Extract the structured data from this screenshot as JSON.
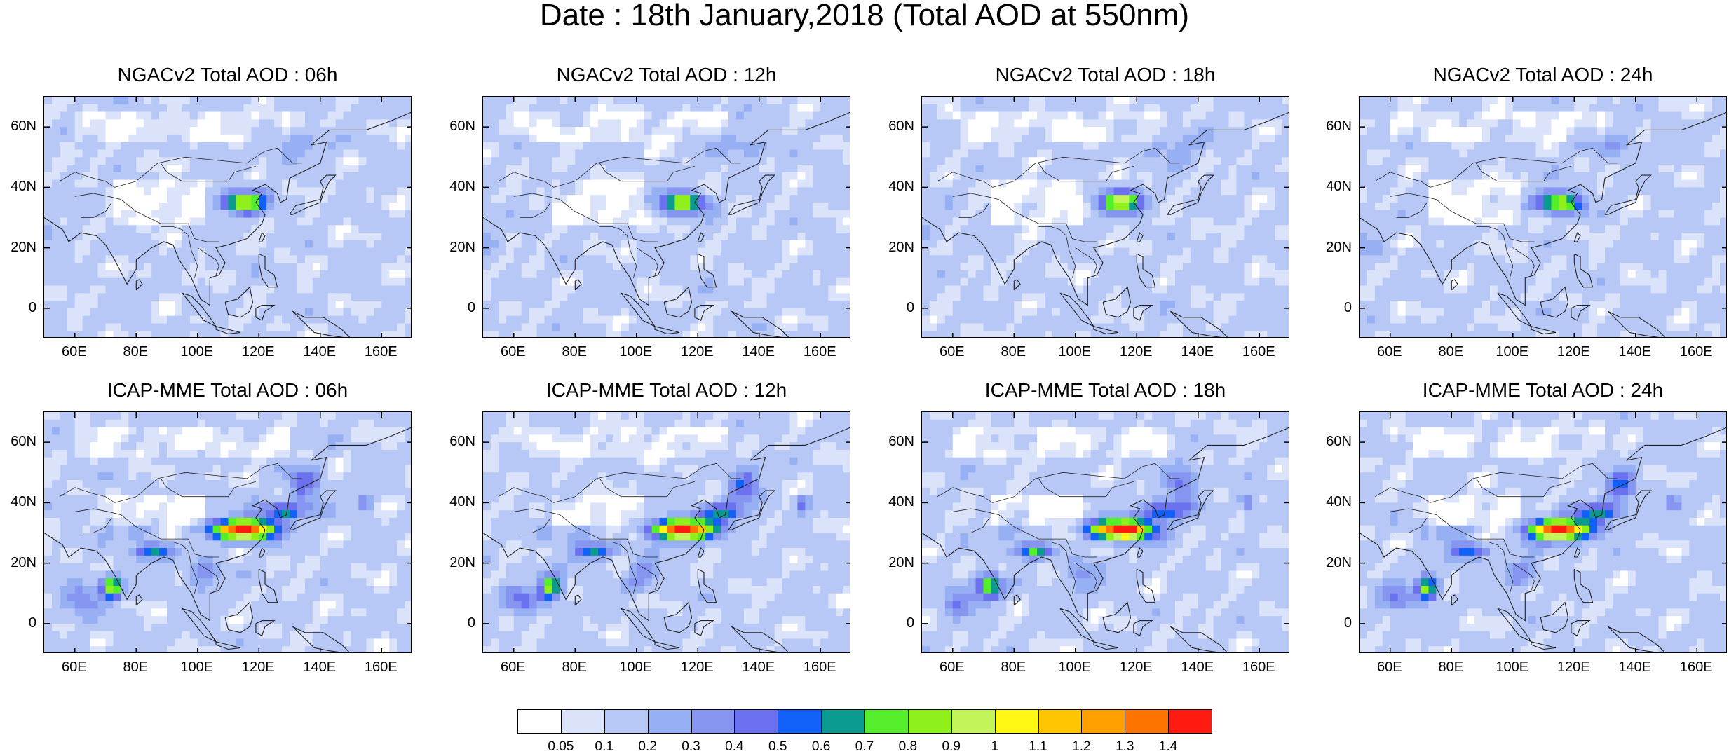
{
  "title": "Date : 18th January,2018 (Total AOD at 550nm)",
  "panels": [
    {
      "title": "NGACv2 Total AOD : 06h",
      "row": 0,
      "col": 0,
      "model": "ngac",
      "seed": 11
    },
    {
      "title": "NGACv2 Total AOD : 12h",
      "row": 0,
      "col": 1,
      "model": "ngac",
      "seed": 23
    },
    {
      "title": "NGACv2 Total AOD : 18h",
      "row": 0,
      "col": 2,
      "model": "ngac",
      "seed": 37
    },
    {
      "title": "NGACv2 Total AOD : 24h",
      "row": 0,
      "col": 3,
      "model": "ngac",
      "seed": 41
    },
    {
      "title": "ICAP-MME Total AOD : 06h",
      "row": 1,
      "col": 0,
      "model": "icap",
      "seed": 53
    },
    {
      "title": "ICAP-MME Total AOD : 12h",
      "row": 1,
      "col": 1,
      "model": "icap",
      "seed": 67
    },
    {
      "title": "ICAP-MME Total AOD : 18h",
      "row": 1,
      "col": 2,
      "model": "icap",
      "seed": 79
    },
    {
      "title": "ICAP-MME Total AOD : 24h",
      "row": 1,
      "col": 3,
      "model": "icap",
      "seed": 83
    }
  ],
  "map": {
    "lon_range": [
      50,
      170
    ],
    "lat_range": [
      -10,
      70
    ],
    "lon_ticks": [
      "60E",
      "80E",
      "100E",
      "120E",
      "140E",
      "160E"
    ],
    "lat_ticks": [
      "60N",
      "40N",
      "20N",
      "0"
    ]
  },
  "colorbar": {
    "labels": [
      "0.05",
      "0.1",
      "0.2",
      "0.3",
      "0.4",
      "0.5",
      "0.6",
      "0.7",
      "0.8",
      "0.9",
      "1",
      "1.1",
      "1.2",
      "1.3",
      "1.4"
    ],
    "colors": [
      "#ffffff",
      "#dbe3fb",
      "#b8c8f6",
      "#97b0f3",
      "#8595f0",
      "#6b71ef",
      "#1160f7",
      "#0a9a8f",
      "#55ee2a",
      "#8ff01c",
      "#c3f55a",
      "#fff814",
      "#ffc600",
      "#ff9f00",
      "#ff7400",
      "#ff1b10"
    ]
  }
}
